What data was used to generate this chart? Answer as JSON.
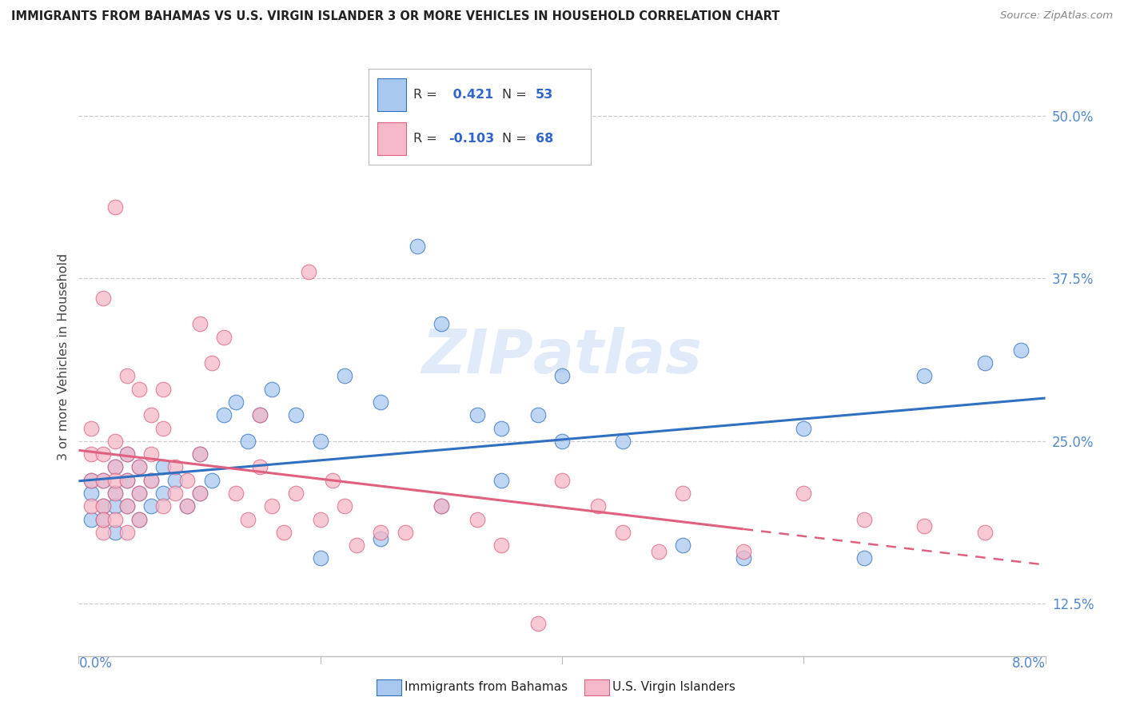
{
  "title": "IMMIGRANTS FROM BAHAMAS VS U.S. VIRGIN ISLANDER 3 OR MORE VEHICLES IN HOUSEHOLD CORRELATION CHART",
  "source": "Source: ZipAtlas.com",
  "ylabel": "3 or more Vehicles in Household",
  "yticks_labels": [
    "12.5%",
    "25.0%",
    "37.5%",
    "50.0%"
  ],
  "ytick_vals": [
    0.125,
    0.25,
    0.375,
    0.5
  ],
  "xmin": 0.0,
  "xmax": 0.08,
  "ymin": 0.085,
  "ymax": 0.545,
  "color_blue": "#a8c8f0",
  "color_pink": "#f5b8c8",
  "color_blue_line": "#3070c0",
  "color_pink_line": "#e06080",
  "background_color": "#ffffff",
  "watermark": "ZIPatlas",
  "blue_scatter_x": [
    0.001,
    0.001,
    0.001,
    0.002,
    0.002,
    0.002,
    0.003,
    0.003,
    0.003,
    0.003,
    0.004,
    0.004,
    0.004,
    0.005,
    0.005,
    0.005,
    0.006,
    0.006,
    0.007,
    0.007,
    0.008,
    0.009,
    0.01,
    0.01,
    0.011,
    0.012,
    0.013,
    0.014,
    0.015,
    0.016,
    0.018,
    0.02,
    0.022,
    0.025,
    0.028,
    0.03,
    0.033,
    0.035,
    0.038,
    0.04,
    0.03,
    0.035,
    0.04,
    0.045,
    0.05,
    0.055,
    0.06,
    0.065,
    0.07,
    0.075,
    0.078,
    0.02,
    0.025
  ],
  "blue_scatter_y": [
    0.19,
    0.21,
    0.22,
    0.2,
    0.22,
    0.19,
    0.21,
    0.23,
    0.2,
    0.18,
    0.22,
    0.2,
    0.24,
    0.21,
    0.19,
    0.23,
    0.2,
    0.22,
    0.21,
    0.23,
    0.22,
    0.2,
    0.24,
    0.21,
    0.22,
    0.27,
    0.28,
    0.25,
    0.27,
    0.29,
    0.27,
    0.25,
    0.3,
    0.28,
    0.4,
    0.34,
    0.27,
    0.26,
    0.27,
    0.25,
    0.2,
    0.22,
    0.3,
    0.25,
    0.17,
    0.16,
    0.26,
    0.16,
    0.3,
    0.31,
    0.32,
    0.16,
    0.175
  ],
  "pink_scatter_x": [
    0.001,
    0.001,
    0.001,
    0.001,
    0.002,
    0.002,
    0.002,
    0.002,
    0.002,
    0.003,
    0.003,
    0.003,
    0.003,
    0.003,
    0.004,
    0.004,
    0.004,
    0.004,
    0.005,
    0.005,
    0.005,
    0.006,
    0.006,
    0.006,
    0.007,
    0.007,
    0.007,
    0.008,
    0.008,
    0.009,
    0.009,
    0.01,
    0.01,
    0.011,
    0.012,
    0.013,
    0.014,
    0.015,
    0.016,
    0.017,
    0.018,
    0.019,
    0.02,
    0.021,
    0.022,
    0.023,
    0.025,
    0.027,
    0.03,
    0.033,
    0.035,
    0.038,
    0.04,
    0.043,
    0.045,
    0.048,
    0.05,
    0.055,
    0.06,
    0.065,
    0.07,
    0.075,
    0.002,
    0.003,
    0.004,
    0.005,
    0.01,
    0.015
  ],
  "pink_scatter_y": [
    0.2,
    0.22,
    0.24,
    0.26,
    0.18,
    0.2,
    0.22,
    0.24,
    0.19,
    0.21,
    0.23,
    0.25,
    0.22,
    0.19,
    0.2,
    0.22,
    0.24,
    0.18,
    0.21,
    0.23,
    0.19,
    0.22,
    0.24,
    0.27,
    0.2,
    0.26,
    0.29,
    0.21,
    0.23,
    0.2,
    0.22,
    0.24,
    0.21,
    0.31,
    0.33,
    0.21,
    0.19,
    0.23,
    0.2,
    0.18,
    0.21,
    0.38,
    0.19,
    0.22,
    0.2,
    0.17,
    0.18,
    0.18,
    0.2,
    0.19,
    0.17,
    0.11,
    0.22,
    0.2,
    0.18,
    0.165,
    0.21,
    0.165,
    0.21,
    0.19,
    0.185,
    0.18,
    0.36,
    0.43,
    0.3,
    0.29,
    0.34,
    0.27
  ]
}
